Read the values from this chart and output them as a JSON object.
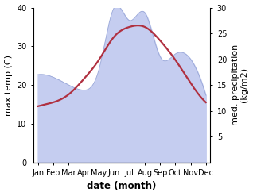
{
  "months": [
    "Jan",
    "Feb",
    "Mar",
    "Apr",
    "May",
    "Jun",
    "Jul",
    "Aug",
    "Sep",
    "Oct",
    "Nov",
    "Dec"
  ],
  "month_positions": [
    0,
    1,
    2,
    3,
    4,
    5,
    6,
    7,
    8,
    9,
    10,
    11
  ],
  "max_temp": [
    14.5,
    15.5,
    17.5,
    21.5,
    26.5,
    32.5,
    35.0,
    35.0,
    31.5,
    26.5,
    20.5,
    15.5
  ],
  "precipitation": [
    17.0,
    16.5,
    15.0,
    14.0,
    18.0,
    30.0,
    27.5,
    29.0,
    20.5,
    21.0,
    20.0,
    13.0
  ],
  "xlabel": "date (month)",
  "ylabel_left": "max temp (C)",
  "ylabel_right": "med. precipitation\n(kg/m2)",
  "ylim_left": [
    0,
    40
  ],
  "ylim_right": [
    0,
    30
  ],
  "temp_color": "#b03040",
  "precip_fill_color": "#c5cdf0",
  "precip_line_color": "#9aa8d8",
  "bg_color": "#ffffff",
  "temp_linewidth": 1.6,
  "precip_linewidth": 0.6,
  "tick_label_fontsize": 7,
  "axis_label_fontsize": 8,
  "xlabel_fontsize": 8.5,
  "xlabel_fontweight": "bold",
  "right_yticks": [
    5,
    10,
    15,
    20,
    25,
    30
  ],
  "left_yticks": [
    0,
    10,
    20,
    30,
    40
  ]
}
